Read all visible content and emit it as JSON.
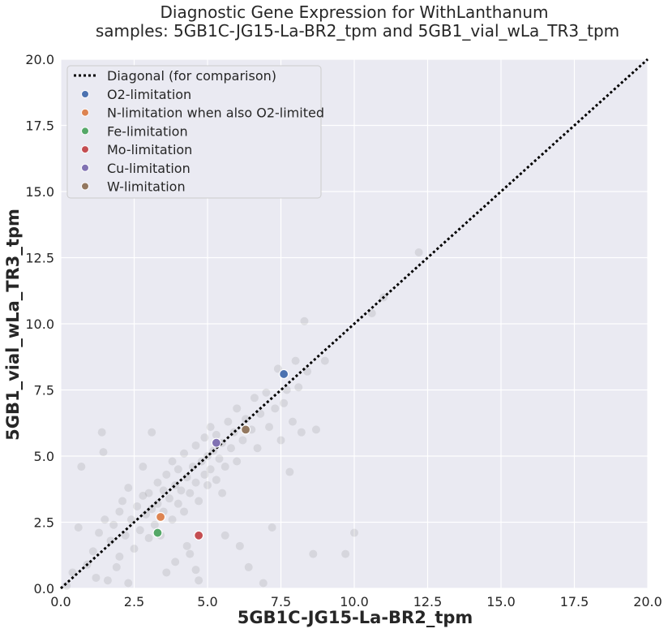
{
  "chart_data": {
    "type": "scatter",
    "title_lines": [
      "Diagnostic Gene Expression for WithLanthanum",
      "samples: 5GB1C-JG15-La-BR2_tpm and 5GB1_vial_wLa_TR3_tpm"
    ],
    "xlabel": "5GB1C-JG15-La-BR2_tpm",
    "ylabel": "5GB1_vial_wLa_TR3_tpm",
    "xlim": [
      0,
      20
    ],
    "ylim": [
      0,
      20
    ],
    "xticks": [
      "0.0",
      "2.5",
      "5.0",
      "7.5",
      "10.0",
      "12.5",
      "15.0",
      "17.5",
      "20.0"
    ],
    "yticks": [
      "0.0",
      "2.5",
      "5.0",
      "7.5",
      "10.0",
      "12.5",
      "15.0",
      "17.5",
      "20.0"
    ],
    "grid": true,
    "legend_position": "upper-left",
    "diagonal": {
      "name": "Diagonal (for comparison)",
      "x": [
        0,
        20
      ],
      "y": [
        0,
        20
      ],
      "style": "dotted",
      "color": "#000000"
    },
    "background_points": {
      "color": "#808080",
      "description": "all genes (grey, semi-transparent)",
      "points": [
        [
          0.2,
          0.1
        ],
        [
          0.4,
          0.6
        ],
        [
          0.6,
          2.3
        ],
        [
          0.7,
          4.6
        ],
        [
          0.9,
          0.9
        ],
        [
          1.1,
          1.4
        ],
        [
          1.2,
          0.4
        ],
        [
          1.3,
          2.1
        ],
        [
          1.4,
          5.9
        ],
        [
          1.45,
          5.15
        ],
        [
          1.5,
          2.6
        ],
        [
          1.6,
          0.3
        ],
        [
          1.7,
          1.8
        ],
        [
          1.8,
          2.4
        ],
        [
          1.9,
          0.8
        ],
        [
          2.0,
          2.9
        ],
        [
          2.0,
          1.2
        ],
        [
          2.1,
          3.3
        ],
        [
          2.2,
          2.0
        ],
        [
          2.3,
          0.2
        ],
        [
          2.3,
          3.8
        ],
        [
          2.4,
          2.6
        ],
        [
          2.5,
          1.5
        ],
        [
          2.6,
          3.1
        ],
        [
          2.7,
          2.2
        ],
        [
          2.8,
          4.6
        ],
        [
          2.8,
          3.5
        ],
        [
          2.9,
          2.8
        ],
        [
          3.0,
          1.9
        ],
        [
          3.0,
          3.6
        ],
        [
          3.1,
          5.9
        ],
        [
          3.1,
          3.0
        ],
        [
          3.2,
          2.4
        ],
        [
          3.3,
          4.0
        ],
        [
          3.3,
          3.2
        ],
        [
          3.4,
          2.0
        ],
        [
          3.5,
          3.7
        ],
        [
          3.5,
          2.9
        ],
        [
          3.6,
          4.3
        ],
        [
          3.6,
          0.6
        ],
        [
          3.7,
          3.4
        ],
        [
          3.8,
          2.6
        ],
        [
          3.8,
          4.8
        ],
        [
          3.9,
          3.9
        ],
        [
          4.0,
          3.2
        ],
        [
          4.0,
          4.5
        ],
        [
          4.1,
          3.7
        ],
        [
          4.2,
          2.9
        ],
        [
          4.2,
          5.1
        ],
        [
          4.3,
          4.2
        ],
        [
          4.4,
          3.6
        ],
        [
          4.4,
          1.3
        ],
        [
          4.5,
          4.6
        ],
        [
          4.6,
          4.0
        ],
        [
          4.6,
          5.4
        ],
        [
          4.7,
          3.3
        ],
        [
          4.7,
          0.3
        ],
        [
          4.8,
          4.8
        ],
        [
          4.9,
          4.3
        ],
        [
          4.9,
          5.7
        ],
        [
          5.0,
          3.9
        ],
        [
          5.0,
          5.0
        ],
        [
          5.1,
          4.5
        ],
        [
          5.1,
          6.1
        ],
        [
          5.2,
          5.2
        ],
        [
          5.3,
          4.1
        ],
        [
          5.3,
          5.8
        ],
        [
          5.4,
          4.9
        ],
        [
          5.5,
          5.5
        ],
        [
          5.5,
          3.6
        ],
        [
          5.6,
          4.6
        ],
        [
          5.7,
          6.3
        ],
        [
          5.8,
          5.3
        ],
        [
          5.9,
          5.9
        ],
        [
          6.0,
          4.8
        ],
        [
          6.0,
          6.8
        ],
        [
          6.1,
          1.6
        ],
        [
          6.2,
          5.6
        ],
        [
          6.3,
          6.4
        ],
        [
          6.4,
          0.8
        ],
        [
          6.5,
          6.0
        ],
        [
          6.6,
          7.2
        ],
        [
          6.7,
          5.3
        ],
        [
          6.8,
          6.6
        ],
        [
          6.9,
          0.2
        ],
        [
          7.0,
          7.4
        ],
        [
          7.1,
          6.1
        ],
        [
          7.2,
          2.3
        ],
        [
          7.3,
          6.8
        ],
        [
          7.4,
          8.3
        ],
        [
          7.5,
          5.6
        ],
        [
          7.6,
          7.0
        ],
        [
          7.7,
          7.5
        ],
        [
          7.8,
          4.4
        ],
        [
          7.9,
          6.3
        ],
        [
          8.0,
          8.6
        ],
        [
          8.1,
          7.6
        ],
        [
          8.2,
          5.9
        ],
        [
          8.3,
          10.1
        ],
        [
          8.4,
          8.2
        ],
        [
          8.6,
          1.3
        ],
        [
          8.7,
          6.0
        ],
        [
          9.0,
          8.6
        ],
        [
          9.7,
          1.3
        ],
        [
          10.0,
          2.1
        ],
        [
          10.6,
          10.4
        ],
        [
          11.0,
          11.0
        ],
        [
          12.2,
          12.7
        ],
        [
          4.3,
          1.6
        ],
        [
          4.6,
          0.7
        ],
        [
          5.6,
          2.0
        ],
        [
          3.9,
          1.0
        ]
      ]
    },
    "series": [
      {
        "name": "O2-limitation",
        "color": "#4c72b0",
        "x": [
          7.6
        ],
        "y": [
          8.1
        ]
      },
      {
        "name": "N-limitation when also O2-limited",
        "color": "#dd8452",
        "x": [
          3.4
        ],
        "y": [
          2.7
        ]
      },
      {
        "name": "Fe-limitation",
        "color": "#55a868",
        "x": [
          3.3
        ],
        "y": [
          2.1
        ]
      },
      {
        "name": "Mo-limitation",
        "color": "#c44e52",
        "x": [
          4.7
        ],
        "y": [
          2.0
        ]
      },
      {
        "name": "Cu-limitation",
        "color": "#8172b3",
        "x": [
          5.3
        ],
        "y": [
          5.5
        ]
      },
      {
        "name": "W-limitation",
        "color": "#937860",
        "x": [
          6.3
        ],
        "y": [
          6.0
        ]
      }
    ],
    "colors": {
      "plot_background": "#eaeaf2",
      "grid": "#ffffff",
      "text": "#262626"
    }
  }
}
